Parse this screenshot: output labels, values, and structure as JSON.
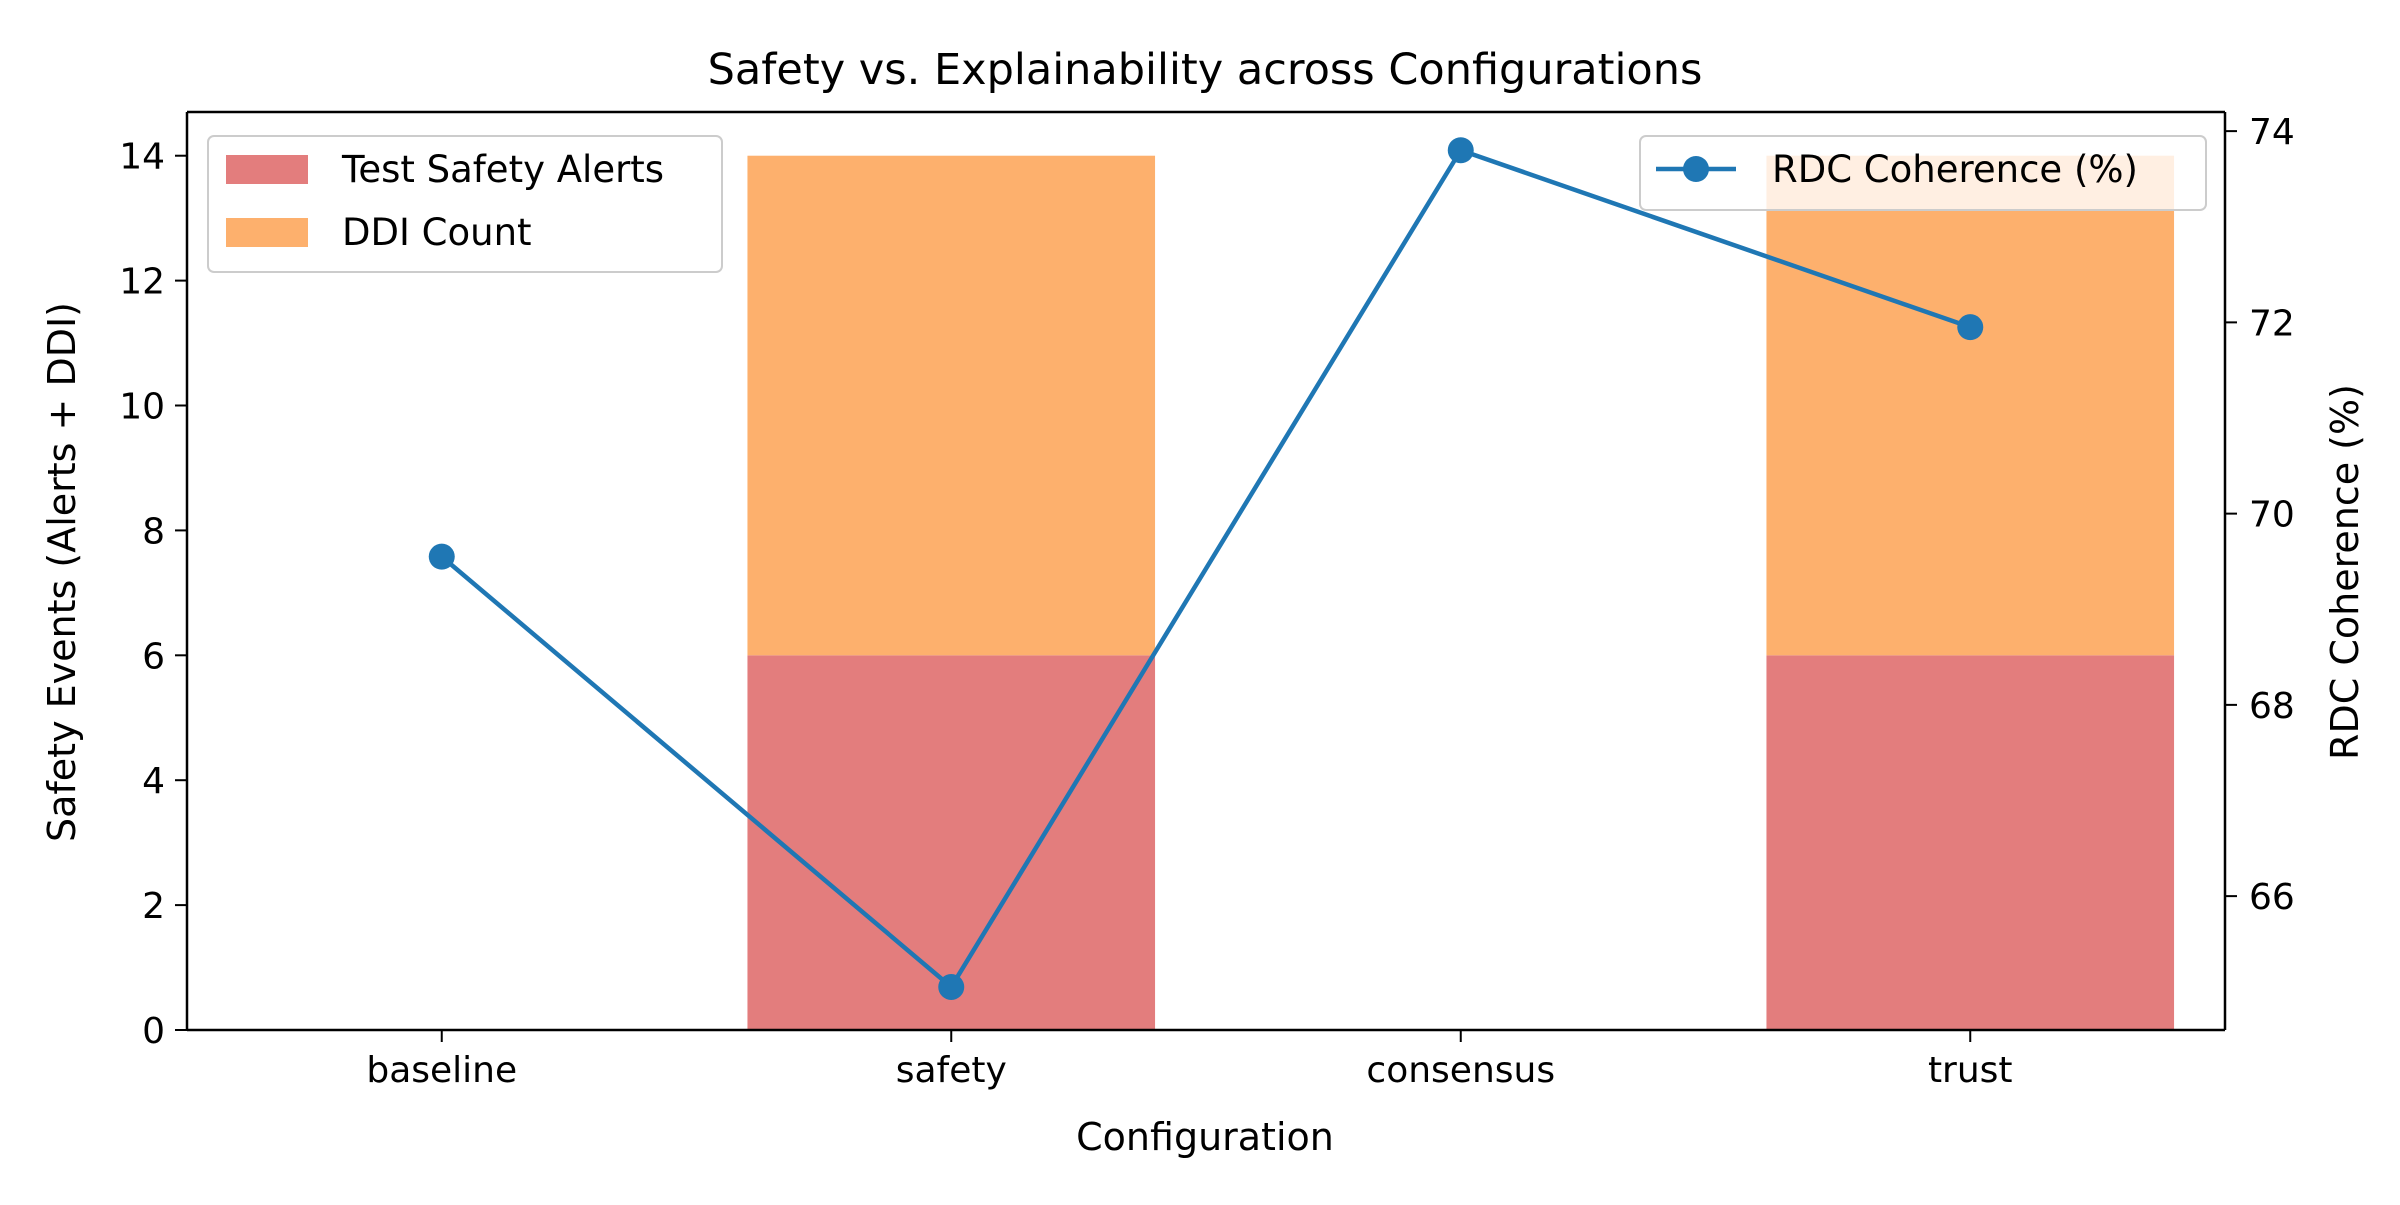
{
  "chart_data": {
    "type": "bar",
    "title": "Safety vs. Explainability across Configurations",
    "xlabel": "Configuration",
    "ylabel": "Safety Events (Alerts + DDI)",
    "y2label": "RDC Coherence (%)",
    "categories": [
      "baseline",
      "safety",
      "consensus",
      "trust"
    ],
    "ylim": [
      0,
      14.7
    ],
    "y2lim": [
      64.6,
      74.2
    ],
    "yticks": [
      0,
      2,
      4,
      6,
      8,
      10,
      12,
      14
    ],
    "y2ticks": [
      66,
      68,
      70,
      72,
      74
    ],
    "stacked": true,
    "grid": false,
    "series": [
      {
        "name": "Test Safety Alerts",
        "kind": "bar",
        "axis": "left",
        "color": "#e37d7d",
        "values": [
          0,
          6,
          0,
          6
        ]
      },
      {
        "name": "DDI Count",
        "kind": "bar",
        "axis": "left",
        "color": "#fdb06d",
        "values": [
          0,
          8,
          0,
          8
        ]
      },
      {
        "name": "RDC Coherence (%)",
        "kind": "line",
        "axis": "right",
        "color": "#1f77b4",
        "marker": "circle",
        "values": [
          69.55,
          65.05,
          73.8,
          71.95
        ]
      }
    ],
    "legends": [
      {
        "placement": "top-left",
        "series": [
          "Test Safety Alerts",
          "DDI Count"
        ]
      },
      {
        "placement": "top-right",
        "series": [
          "RDC Coherence (%)"
        ]
      }
    ]
  }
}
